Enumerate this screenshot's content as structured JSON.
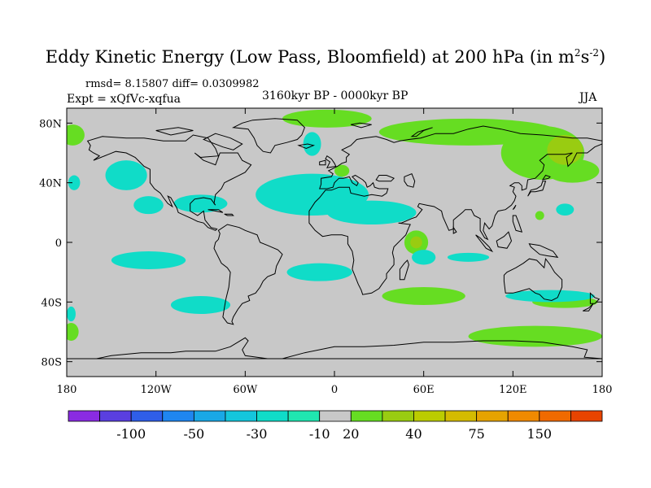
{
  "title": {
    "main": "Eddy Kinetic Energy (Low Pass, Bloomfield) at 200 hPa (in m",
    "sup1": "2",
    "mid": "s",
    "sup2": "-2",
    "end": ")"
  },
  "stats": "rmsd= 8.15807 diff= 0.0309982",
  "experiment": "Expt = xQfVc-xqfua",
  "period": "3160kyr BP - 0000kyr BP",
  "season": "JJA",
  "map": {
    "lon_range": [
      -180,
      180
    ],
    "lat_range": [
      -90,
      90
    ],
    "x_ticks": [
      {
        "lon": -180,
        "label": "180"
      },
      {
        "lon": -120,
        "label": "120W"
      },
      {
        "lon": -60,
        "label": "60W"
      },
      {
        "lon": 0,
        "label": "0"
      },
      {
        "lon": 60,
        "label": "60E"
      },
      {
        "lon": 120,
        "label": "120E"
      },
      {
        "lon": 180,
        "label": "180"
      }
    ],
    "y_ticks": [
      {
        "lat": 80,
        "label": "80N"
      },
      {
        "lat": 40,
        "label": "40N"
      },
      {
        "lat": 0,
        "label": "0"
      },
      {
        "lat": -40,
        "label": "40S"
      },
      {
        "lat": -80,
        "label": "80S"
      }
    ],
    "background_color": "#c8c8c8"
  },
  "colorbar": {
    "colors": [
      "#8a2be2",
      "#5a3fe0",
      "#2f5ee8",
      "#1f86f0",
      "#19a8e6",
      "#14c6dc",
      "#10dcc8",
      "#20e6b0",
      "#c8c8c8",
      "#66dd22",
      "#99cc11",
      "#bbcc00",
      "#d4bb00",
      "#e6a300",
      "#f08a00",
      "#f06a00",
      "#e84400"
    ],
    "labels": [
      {
        "index": 2,
        "text": "-100"
      },
      {
        "index": 4,
        "text": "-50"
      },
      {
        "index": 6,
        "text": "-30"
      },
      {
        "index": 8,
        "text": "-10"
      },
      {
        "index": 9,
        "text": "20"
      },
      {
        "index": 11,
        "text": "40"
      },
      {
        "index": 13,
        "text": "75"
      },
      {
        "index": 15,
        "text": "150"
      }
    ]
  },
  "anomaly_regions": [
    {
      "color": "#66dd22",
      "lon": -176,
      "lat": 72,
      "rlon": 8,
      "rlat": 7
    },
    {
      "color": "#66dd22",
      "lon": -5,
      "lat": 83,
      "rlon": 30,
      "rlat": 6
    },
    {
      "color": "#66dd22",
      "lon": 90,
      "lat": 74,
      "rlon": 60,
      "rlat": 9
    },
    {
      "color": "#66dd22",
      "lon": 140,
      "lat": 60,
      "rlon": 28,
      "rlat": 18
    },
    {
      "color": "#66dd22",
      "lon": 160,
      "lat": 48,
      "rlon": 18,
      "rlat": 8
    },
    {
      "color": "#66dd22",
      "lon": 5,
      "lat": 48,
      "rlon": 5,
      "rlat": 4
    },
    {
      "color": "#99cc11",
      "lon": 155,
      "lat": 62,
      "rlon": 12,
      "rlat": 10
    },
    {
      "color": "#66dd22",
      "lon": 55,
      "lat": 0,
      "rlon": 8,
      "rlat": 8
    },
    {
      "color": "#99cc11",
      "lon": 55,
      "lat": 0,
      "rlon": 4,
      "rlat": 4
    },
    {
      "color": "#66dd22",
      "lon": 60,
      "lat": -36,
      "rlon": 28,
      "rlat": 6
    },
    {
      "color": "#66dd22",
      "lon": 135,
      "lat": -63,
      "rlon": 45,
      "rlat": 7
    },
    {
      "color": "#66dd22",
      "lon": 155,
      "lat": -40,
      "rlon": 22,
      "rlat": 4
    },
    {
      "color": "#66dd22",
      "lon": -177,
      "lat": -60,
      "rlon": 5,
      "rlat": 6
    },
    {
      "color": "#66dd22",
      "lon": 138,
      "lat": 18,
      "rlon": 3,
      "rlat": 3
    },
    {
      "color": "#10dcc8",
      "lon": -140,
      "lat": 45,
      "rlon": 14,
      "rlat": 10
    },
    {
      "color": "#10dcc8",
      "lon": -125,
      "lat": 25,
      "rlon": 10,
      "rlat": 6
    },
    {
      "color": "#10dcc8",
      "lon": -15,
      "lat": 32,
      "rlon": 38,
      "rlat": 14
    },
    {
      "color": "#10dcc8",
      "lon": 25,
      "lat": 20,
      "rlon": 30,
      "rlat": 8
    },
    {
      "color": "#10dcc8",
      "lon": -90,
      "lat": 26,
      "rlon": 18,
      "rlat": 6
    },
    {
      "color": "#10dcc8",
      "lon": -125,
      "lat": -12,
      "rlon": 25,
      "rlat": 6
    },
    {
      "color": "#10dcc8",
      "lon": -90,
      "lat": -42,
      "rlon": 20,
      "rlat": 6
    },
    {
      "color": "#10dcc8",
      "lon": -10,
      "lat": -20,
      "rlon": 22,
      "rlat": 6
    },
    {
      "color": "#10dcc8",
      "lon": 60,
      "lat": -10,
      "rlon": 8,
      "rlat": 5
    },
    {
      "color": "#10dcc8",
      "lon": 90,
      "lat": -10,
      "rlon": 14,
      "rlat": 3
    },
    {
      "color": "#10dcc8",
      "lon": 145,
      "lat": -36,
      "rlon": 30,
      "rlat": 4
    },
    {
      "color": "#10dcc8",
      "lon": -15,
      "lat": 66,
      "rlon": 6,
      "rlat": 8
    },
    {
      "color": "#10dcc8",
      "lon": -175,
      "lat": 40,
      "rlon": 4,
      "rlat": 5
    },
    {
      "color": "#10dcc8",
      "lon": -177,
      "lat": -48,
      "rlon": 3,
      "rlat": 5
    },
    {
      "color": "#10dcc8",
      "lon": 155,
      "lat": 22,
      "rlon": 6,
      "rlat": 4
    }
  ]
}
